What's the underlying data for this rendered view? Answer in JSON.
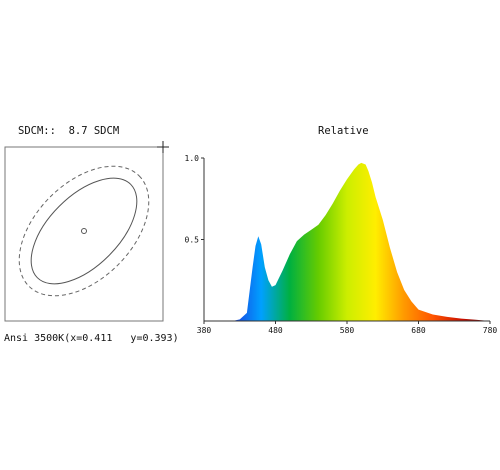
{
  "sdcm_panel": {
    "title": "SDCM::  8.7 SDCM",
    "caption": "Ansi 3500K(x=0.411   y=0.393)"
  },
  "chart_data": [
    {
      "type": "line",
      "title": "SDCM::  8.7 SDCM",
      "caption": "Ansi 3500K(x=0.411   y=0.393)",
      "sdcm": 8.7,
      "cct": "3500K",
      "x": 0.411,
      "y": 0.393,
      "ellipses": [
        "solid",
        "dashed"
      ],
      "center_marker": "circle",
      "grid": false
    },
    {
      "type": "area",
      "title": "Relative",
      "xlabel": "",
      "ylabel": "",
      "xlim": [
        380,
        780
      ],
      "ylim": [
        0,
        1.0
      ],
      "x_ticks": [
        380,
        480,
        580,
        680,
        780
      ],
      "y_ticks": [
        0.5,
        1.0
      ],
      "y_tick_labels": [
        "0.5",
        "1.0"
      ],
      "grid": false,
      "x": [
        380,
        420,
        430,
        440,
        448,
        452,
        456,
        460,
        465,
        470,
        475,
        480,
        490,
        500,
        510,
        520,
        530,
        540,
        550,
        560,
        570,
        580,
        590,
        596,
        600,
        606,
        610,
        615,
        620,
        630,
        640,
        650,
        660,
        670,
        680,
        700,
        720,
        740,
        760,
        780
      ],
      "values": [
        0.0,
        0.0,
        0.01,
        0.05,
        0.33,
        0.46,
        0.52,
        0.47,
        0.33,
        0.25,
        0.21,
        0.22,
        0.31,
        0.41,
        0.49,
        0.53,
        0.56,
        0.59,
        0.65,
        0.72,
        0.8,
        0.87,
        0.93,
        0.96,
        0.97,
        0.96,
        0.92,
        0.85,
        0.76,
        0.62,
        0.45,
        0.3,
        0.19,
        0.12,
        0.07,
        0.04,
        0.025,
        0.015,
        0.008,
        0.0
      ],
      "series": [
        {
          "name": "Relative",
          "fill": "visible-spectrum gradient"
        }
      ]
    }
  ],
  "colors": {
    "axis": "#333333",
    "frame": "#777777",
    "ellipse": "#555555",
    "spectrum_stops": [
      "#1a237e",
      "#1a3ee0",
      "#00a0ff",
      "#00b040",
      "#66cc00",
      "#ccee00",
      "#ffee00",
      "#ff9900",
      "#ff5500",
      "#cc1100",
      "#660000"
    ]
  }
}
